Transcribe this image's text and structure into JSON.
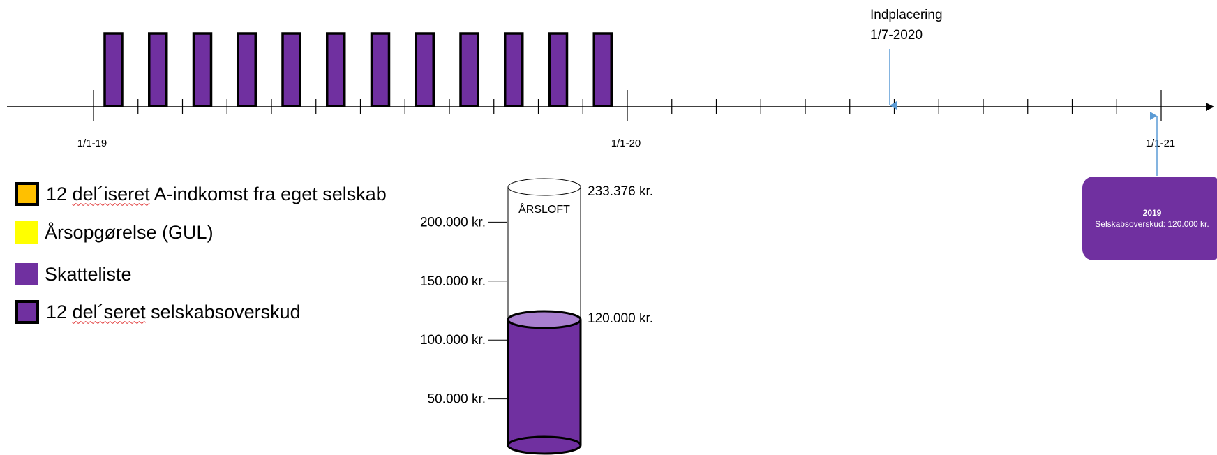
{
  "timeline": {
    "tick_labels": [
      "1/1-19",
      "1/1-20",
      "1/1-21"
    ],
    "bar_count": 12,
    "bar_color": "#7030a0",
    "placement": {
      "line1": "Indplacering",
      "line2": "1/7-2020"
    },
    "arrow_color": "#5b9bd5"
  },
  "legend": {
    "items": [
      {
        "id": "a-income",
        "before": "12 ",
        "underlined": "del´iseret",
        "after": " A-indkomst fra eget selskab",
        "fill": "#ffc000",
        "border": true
      },
      {
        "id": "annual-statement",
        "before": "",
        "underlined": "",
        "after": "Årsopgørelse (GUL)",
        "fill": "#ffff00",
        "border": false
      },
      {
        "id": "tax-list",
        "before": "",
        "underlined": "",
        "after": "Skatteliste",
        "fill": "#7030a0",
        "border": false
      },
      {
        "id": "company-surplus",
        "before": "12 ",
        "underlined": "del´seret",
        "after": " selskabsoverskud",
        "fill": "#7030a0",
        "border": true
      }
    ]
  },
  "cylinder": {
    "cap_label": "ÅRSLOFT",
    "scale_labels": [
      "200.000 kr.",
      "150.000 kr.",
      "100.000 kr.",
      "50.000 kr."
    ],
    "scale_values": [
      200000,
      150000,
      100000,
      50000
    ],
    "ceiling_value": 233376,
    "ceiling_label": "233.376 kr.",
    "fill_value": 120000,
    "fill_label": "120.000 kr.",
    "fill_color": "#7030a0",
    "fill_top_color": "#a97fcf"
  },
  "callout": {
    "title": "2019",
    "body": "Selskabsoverskud: 120.000 kr."
  }
}
